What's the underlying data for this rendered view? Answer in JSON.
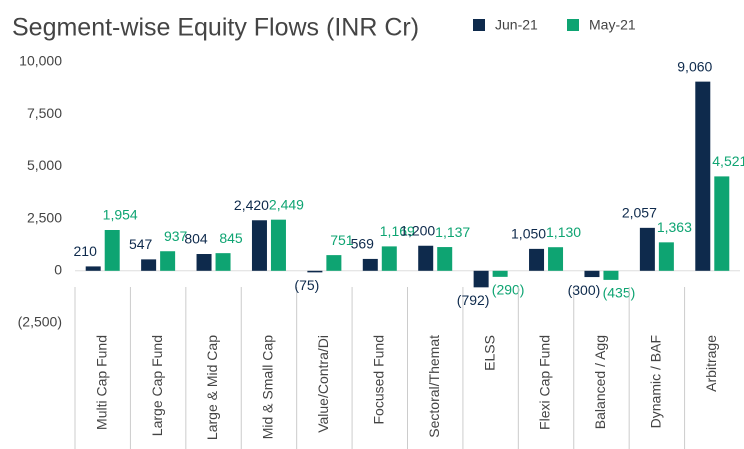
{
  "chart_data": {
    "type": "bar",
    "title": "Segment-wise Equity Flows (INR Cr)",
    "categories": [
      "Multi Cap Fund",
      "Large Cap Fund",
      "Large & Mid Cap",
      "Mid & Small Cap",
      "Value/Contra/Di",
      "Focused Fund",
      "Sectoral/Themat",
      "ELSS",
      "Flexi Cap Fund",
      "Balanced / Agg",
      "Dynamic / BAF",
      "Arbitrage"
    ],
    "series": [
      {
        "name": "Jun-21",
        "color": "#0e2a4c",
        "values": [
          210,
          547,
          804,
          2420,
          -75,
          569,
          1200,
          -792,
          1050,
          -300,
          2057,
          9060
        ],
        "value_labels": [
          "210",
          "547",
          "804",
          "2,420",
          "(75)",
          "569",
          "1,200",
          "(792)",
          "1,050",
          "(300)",
          "2,057",
          "9,060"
        ]
      },
      {
        "name": "May-21",
        "color": "#0ea472",
        "values": [
          1954,
          937,
          845,
          2449,
          751,
          1169,
          1137,
          -290,
          1130,
          -435,
          1363,
          4521
        ],
        "value_labels": [
          "1,954",
          "937",
          "845",
          "2,449",
          "751",
          "1,169",
          "1,137",
          "(290)",
          "1,130",
          "(435)",
          "1,363",
          "4,521"
        ]
      }
    ],
    "ylim": [
      -2500,
      10000
    ],
    "yticks": [
      {
        "value": -2500,
        "label": "(2,500)"
      },
      0,
      {
        "value": 2500,
        "label": "2,500"
      },
      {
        "value": 5000,
        "label": "5,000"
      },
      {
        "value": 7500,
        "label": "7,500"
      },
      {
        "value": 10000,
        "label": "10,000"
      }
    ],
    "legend": "top-right",
    "grid": false
  }
}
